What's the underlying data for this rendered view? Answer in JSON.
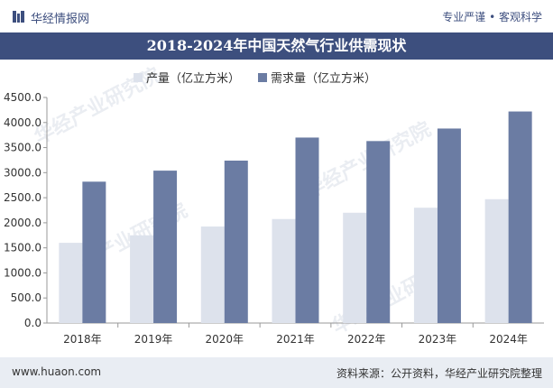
{
  "header": {
    "brand": "华经情报网",
    "tagline": "专业严谨 • 客观科学"
  },
  "title": "2018-2024年中国天然气行业供需现状",
  "watermark": "华经产业研究院",
  "footer": {
    "site": "www.huaon.com",
    "source": "资料来源：公开资料，华经产业研究院整理"
  },
  "colors": {
    "brand_dark": "#3d4f7e",
    "production": "#dde2ec",
    "demand": "#6b7ca3"
  },
  "chart_data": {
    "type": "bar",
    "categories": [
      "2018年",
      "2019年",
      "2020年",
      "2021年",
      "2022年",
      "2023年",
      "2024年"
    ],
    "series": [
      {
        "name": "产量（亿立方米）",
        "values": [
          1600,
          1750,
          1925,
          2075,
          2200,
          2300,
          2470
        ],
        "color": "#dde2ec"
      },
      {
        "name": "需求量（亿立方米）",
        "values": [
          2820,
          3040,
          3240,
          3700,
          3630,
          3880,
          4220
        ],
        "color": "#6b7ca3"
      }
    ],
    "yticks": [
      "0.0",
      "500.0",
      "1000.0",
      "1500.0",
      "2000.0",
      "2500.0",
      "3000.0",
      "3500.0",
      "4000.0",
      "4500.0"
    ],
    "ylim": [
      0,
      4500
    ],
    "legend_position": "top-center",
    "grid": false
  }
}
